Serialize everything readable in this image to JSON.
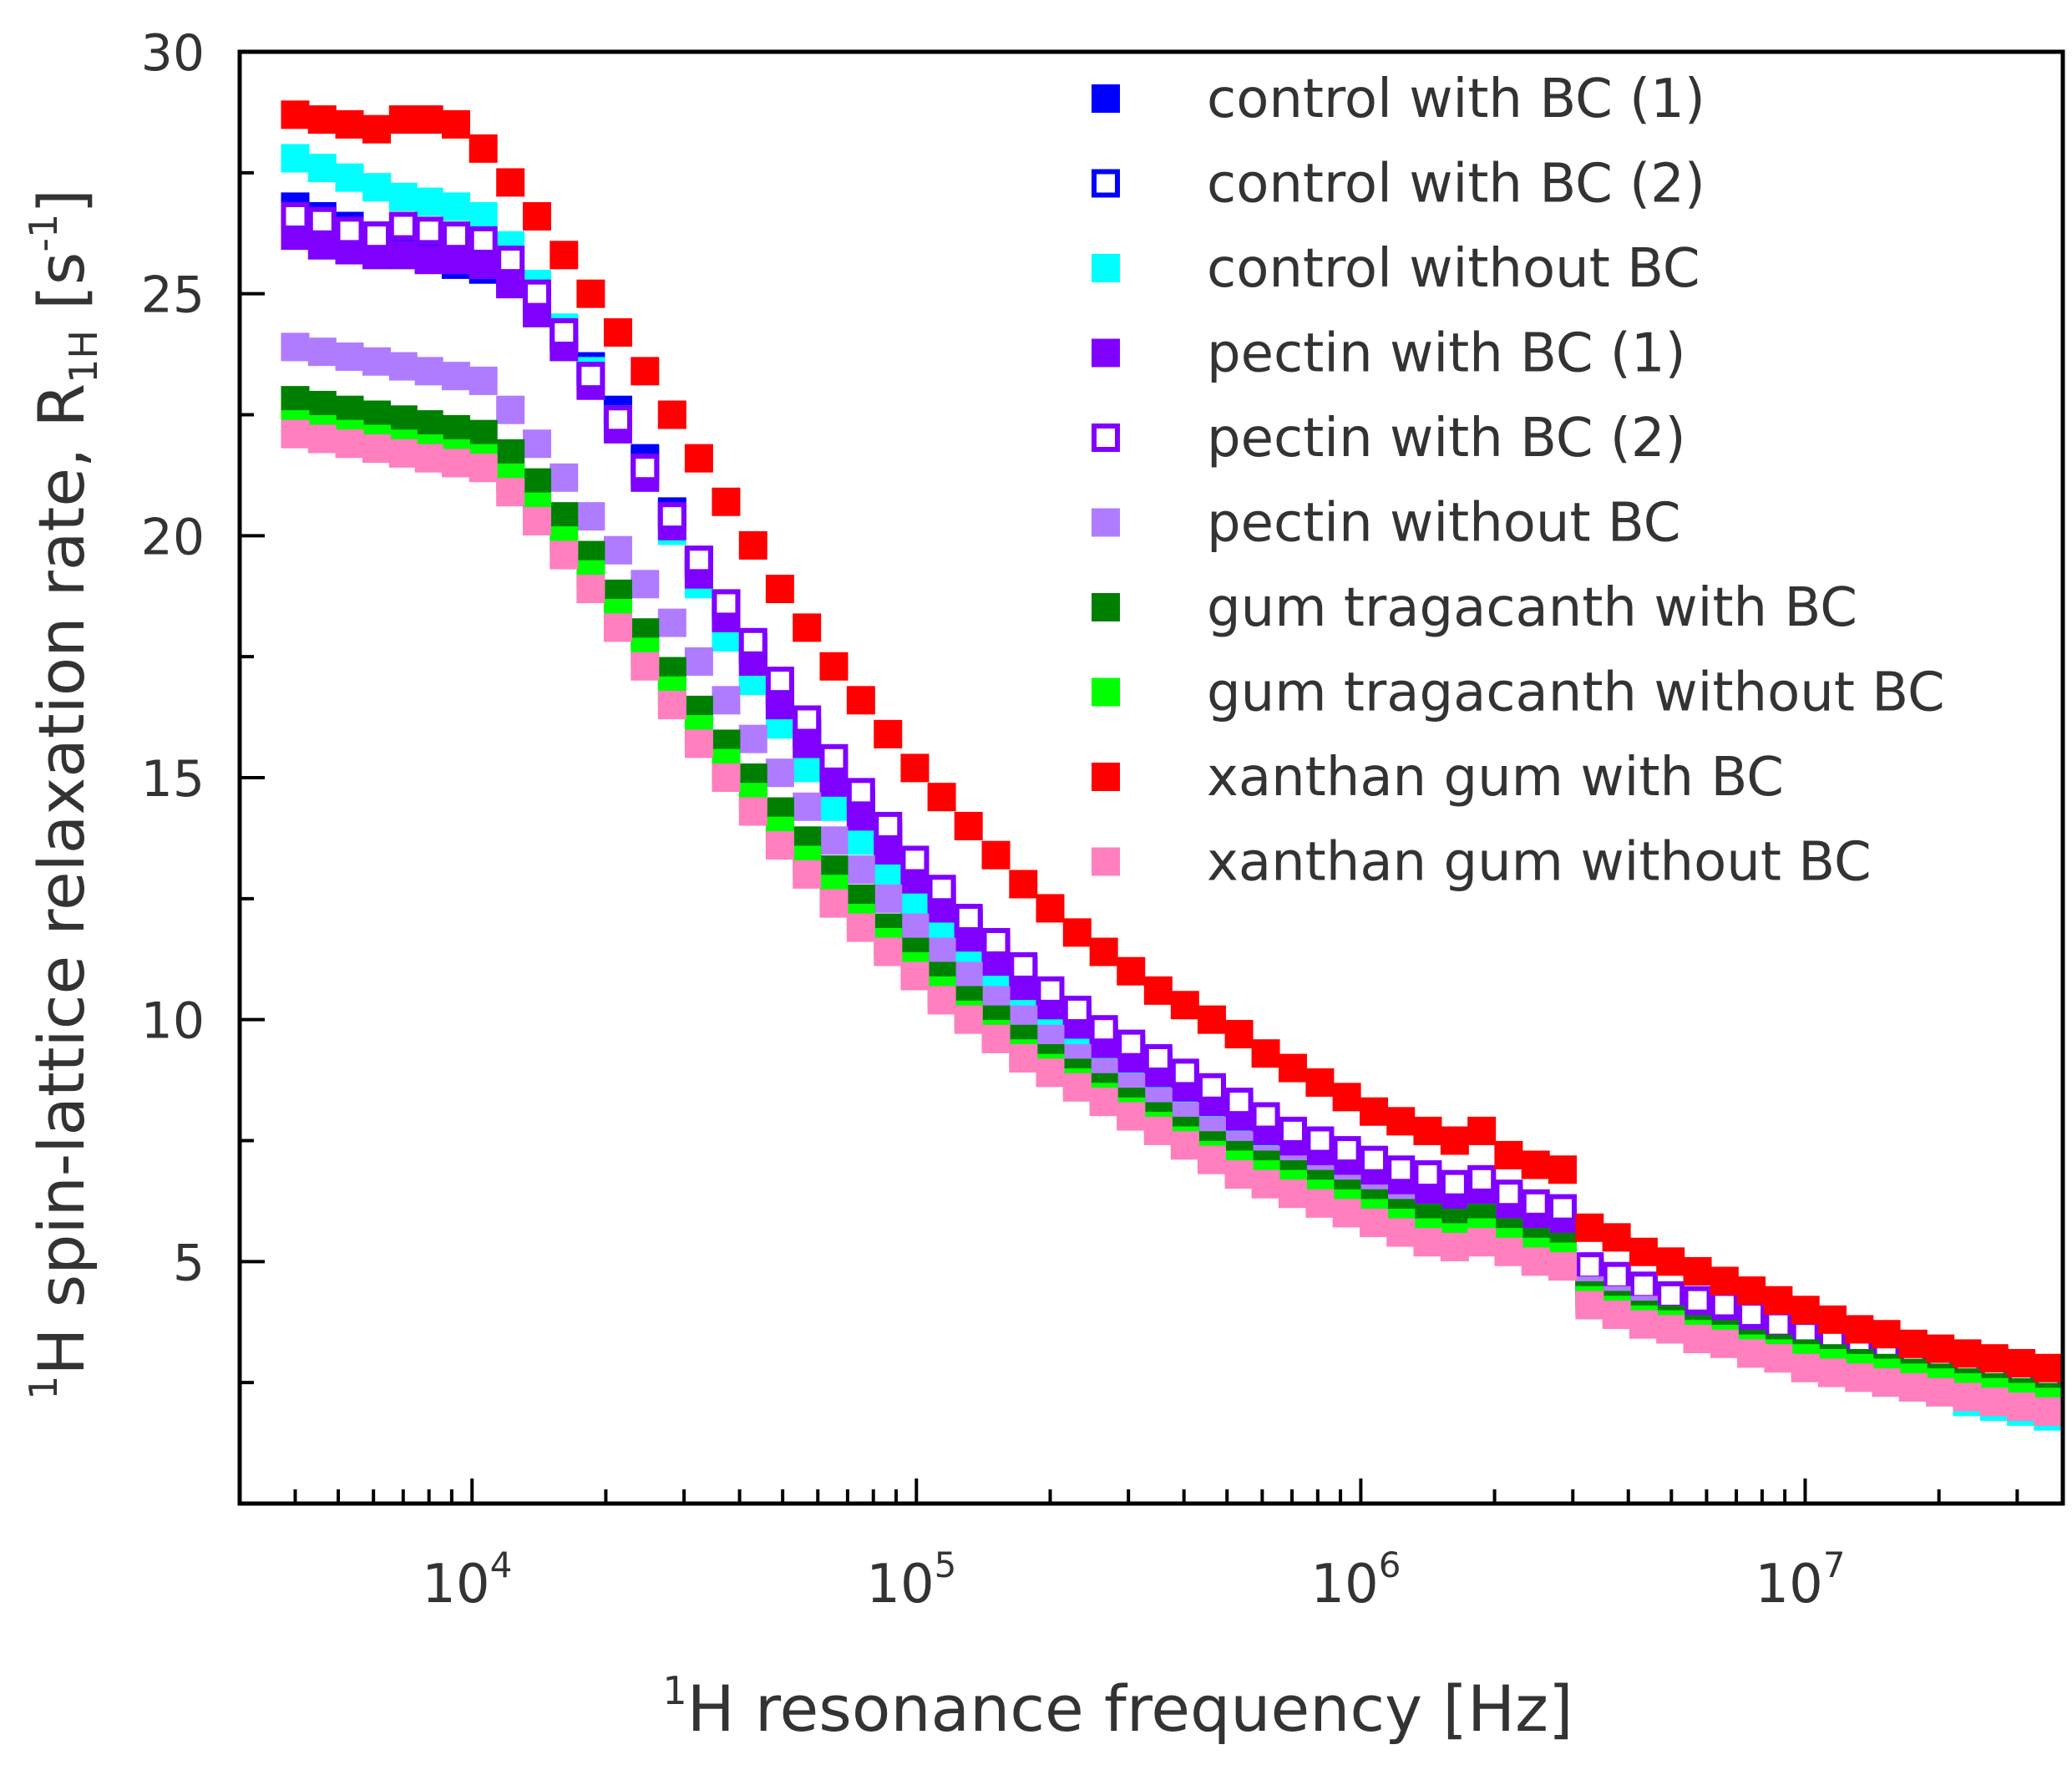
{
  "chart_data": {
    "type": "scatter",
    "title": "",
    "xlabel": {
      "sup": "1",
      "main": "H resonance frequency [Hz]"
    },
    "ylabel": {
      "sup": "1",
      "main": "H spin-lattice relaxation rate,  R",
      "sub": "1H",
      "unit_open": " [s",
      "unit_sup": "-1",
      "unit_close": "]"
    },
    "xscale": "log",
    "xlim": [
      3000,
      38000000
    ],
    "ylim": [
      0,
      30
    ],
    "x_ticks": [
      {
        "value": 10000,
        "base": "10",
        "exp": "4"
      },
      {
        "value": 100000,
        "base": "10",
        "exp": "5"
      },
      {
        "value": 1000000,
        "base": "10",
        "exp": "6"
      },
      {
        "value": 10000000,
        "base": "10",
        "exp": "7"
      }
    ],
    "y_ticks": [
      {
        "value": 5,
        "label": "5"
      },
      {
        "value": 10,
        "label": "10"
      },
      {
        "value": 15,
        "label": "15"
      },
      {
        "value": 20,
        "label": "20"
      },
      {
        "value": 25,
        "label": "25"
      },
      {
        "value": 30,
        "label": "30"
      }
    ],
    "legend_position": "top-right",
    "x": [
      4000,
      4600,
      5300,
      6100,
      7000,
      8000,
      9200,
      10600,
      12200,
      14000,
      16100,
      18500,
      21300,
      24500,
      28200,
      32400,
      37300,
      42900,
      49300,
      56700,
      65200,
      75000,
      86300,
      99200,
      114000,
      131000,
      151000,
      174000,
      200000,
      230000,
      264000,
      304000,
      350000,
      402000,
      462000,
      532000,
      611000,
      703000,
      809000,
      930000,
      1070000,
      1230000,
      1414000,
      1627000,
      1871000,
      2151000,
      2474000,
      2845000,
      3272000,
      3763000,
      4327000,
      4976000,
      5723000,
      6581000,
      7568000,
      8703000,
      10010000,
      11510000,
      13240000,
      15220000,
      17500000,
      20130000,
      23150000,
      26620000,
      30620000,
      35200000
    ],
    "series": [
      {
        "name": "control with BC (1)",
        "color": "#0000ff",
        "filled": true,
        "values": [
          26.8,
          26.6,
          26.4,
          26.2,
          26,
          25.8,
          25.7,
          25.6,
          25.3,
          24.8,
          24.2,
          23.5,
          22.6,
          21.6,
          20.5,
          19.5,
          18.6,
          17.7,
          16.8,
          16,
          15.2,
          14.5,
          13.8,
          13.2,
          12.6,
          12,
          11.5,
          11,
          10.5,
          10.1,
          9.7,
          9.4,
          9.1,
          8.8,
          8.5,
          8.2,
          7.9,
          7.6,
          7.4,
          7.2,
          7,
          6.8,
          6.6,
          6.5,
          6.6,
          6.3,
          6.1,
          6,
          4.8,
          4.6,
          4.4,
          4.2,
          4.1,
          4,
          3.8,
          3.6,
          3.4,
          3.3,
          3.1,
          3,
          2.9,
          2.8,
          2.7,
          2.6,
          2.5,
          2.4
        ]
      },
      {
        "name": "control with BC (2)",
        "color": "#0000ff",
        "filled": false,
        "values": [
          26.7,
          26.5,
          26.3,
          26.1,
          25.9,
          25.7,
          25.6,
          25.5,
          25.2,
          24.7,
          24.1,
          23.4,
          22.5,
          21.5,
          20.4,
          19.4,
          18.5,
          17.6,
          16.7,
          15.9,
          15.1,
          14.4,
          13.7,
          13.1,
          12.5,
          11.9,
          11.4,
          10.9,
          10.4,
          10,
          9.6,
          9.3,
          9,
          8.7,
          8.4,
          8.1,
          7.8,
          7.5,
          7.3,
          7.1,
          6.9,
          6.7,
          6.5,
          6.4,
          6.5,
          6.2,
          6,
          5.9,
          4.7,
          4.5,
          4.3,
          4.1,
          4,
          3.9,
          3.7,
          3.5,
          3.3,
          3.2,
          3,
          2.9,
          2.8,
          2.7,
          2.6,
          2.5,
          2.4,
          2.3
        ]
      },
      {
        "name": "control without BC",
        "color": "#00ffff",
        "filled": true,
        "values": [
          27.8,
          27.6,
          27.4,
          27.2,
          27,
          26.9,
          26.8,
          26.6,
          26,
          25.2,
          24.3,
          23.4,
          22.4,
          21.3,
          20.1,
          19,
          17.9,
          17,
          16.1,
          15.2,
          14.4,
          13.7,
          13,
          12.4,
          11.8,
          11.3,
          10.8,
          10.3,
          9.9,
          9.5,
          9.2,
          8.8,
          8.5,
          8.2,
          7.9,
          7.6,
          7.3,
          7.1,
          6.9,
          6.7,
          6.5,
          6.3,
          6.1,
          6,
          6.1,
          5.8,
          5.6,
          5.5,
          4.5,
          4.3,
          4.1,
          3.9,
          3.7,
          3.5,
          3.3,
          3.1,
          2.9,
          2.8,
          2.6,
          2.5,
          2.4,
          2.3,
          2.1,
          2,
          1.9,
          1.8
        ]
      },
      {
        "name": "pectin with BC (1)",
        "color": "#8000ff",
        "filled": true,
        "values": [
          26.2,
          26,
          25.9,
          25.8,
          25.8,
          25.7,
          25.7,
          25.6,
          25.2,
          24.6,
          23.9,
          23.1,
          22.2,
          21.2,
          20.2,
          19.2,
          18.3,
          17.4,
          16.5,
          15.7,
          14.9,
          14.2,
          13.5,
          12.9,
          12.3,
          11.7,
          11.2,
          10.7,
          10.3,
          9.9,
          9.5,
          9.2,
          8.9,
          8.6,
          8.3,
          8,
          7.7,
          7.4,
          7.2,
          7,
          6.8,
          6.6,
          6.4,
          6.3,
          6.4,
          6.1,
          5.9,
          5.8,
          4.6,
          4.4,
          4.2,
          4.1,
          4,
          3.9,
          3.7,
          3.5,
          3.3,
          3.2,
          3,
          2.9,
          2.8,
          2.7,
          2.6,
          2.5,
          2.4,
          2.3
        ]
      },
      {
        "name": "pectin with BC (2)",
        "color": "#8000ff",
        "filled": false,
        "values": [
          26.6,
          26.5,
          26.3,
          26.2,
          26.4,
          26.3,
          26.2,
          26.1,
          25.7,
          25,
          24.2,
          23.3,
          22.4,
          21.4,
          20.4,
          19.5,
          18.6,
          17.8,
          17,
          16.2,
          15.4,
          14.7,
          14,
          13.3,
          12.7,
          12.1,
          11.6,
          11.1,
          10.6,
          10.2,
          9.8,
          9.5,
          9.2,
          8.9,
          8.6,
          8.3,
          8,
          7.7,
          7.5,
          7.3,
          7.1,
          6.9,
          6.8,
          6.6,
          6.7,
          6.4,
          6.2,
          6.1,
          4.9,
          4.7,
          4.5,
          4.3,
          4.2,
          4.1,
          3.9,
          3.7,
          3.5,
          3.4,
          3.2,
          3.1,
          3,
          2.9,
          2.8,
          2.7,
          2.6,
          2.5
        ]
      },
      {
        "name": "pectin without BC",
        "color": "#b07cff",
        "filled": true,
        "values": [
          23.9,
          23.8,
          23.7,
          23.6,
          23.5,
          23.4,
          23.3,
          23.2,
          22.6,
          21.9,
          21.2,
          20.4,
          19.7,
          19,
          18.2,
          17.4,
          16.6,
          15.8,
          15.1,
          14.4,
          13.7,
          13.1,
          12.5,
          11.9,
          11.4,
          10.9,
          10.4,
          10,
          9.6,
          9.2,
          8.9,
          8.6,
          8.3,
          8,
          7.7,
          7.4,
          7.1,
          6.9,
          6.7,
          6.5,
          6.3,
          6.1,
          5.9,
          5.8,
          5.9,
          5.6,
          5.4,
          5.3,
          4.4,
          4.2,
          4,
          3.8,
          3.6,
          3.4,
          3.2,
          3.1,
          2.9,
          2.8,
          2.7,
          2.6,
          2.5,
          2.4,
          2.3,
          2.2,
          2.1,
          2
        ]
      },
      {
        "name": "gum tragacanth with BC",
        "color": "#008000",
        "filled": true,
        "values": [
          22.8,
          22.7,
          22.6,
          22.5,
          22.4,
          22.3,
          22.2,
          22.1,
          21.7,
          21.1,
          20.4,
          19.6,
          18.8,
          18,
          17.2,
          16.4,
          15.7,
          15,
          14.3,
          13.7,
          13.1,
          12.5,
          11.9,
          11.4,
          10.9,
          10.4,
          10,
          9.6,
          9.2,
          8.9,
          8.6,
          8.3,
          8,
          7.7,
          7.4,
          7.2,
          7,
          6.8,
          6.6,
          6.4,
          6.2,
          6,
          5.9,
          5.8,
          5.9,
          5.6,
          5.4,
          5.3,
          4.3,
          4.1,
          3.9,
          3.8,
          3.6,
          3.5,
          3.3,
          3.2,
          3.1,
          3,
          2.9,
          2.8,
          2.7,
          2.6,
          2.5,
          2.4,
          2.3,
          2.2
        ]
      },
      {
        "name": "gum tragacanth without BC",
        "color": "#00ff00",
        "filled": true,
        "values": [
          22.3,
          22.2,
          22.1,
          22,
          21.9,
          21.8,
          21.7,
          21.6,
          21.2,
          20.6,
          19.9,
          19.2,
          18.4,
          17.6,
          16.8,
          16,
          15.3,
          14.6,
          13.9,
          13.3,
          12.7,
          12.1,
          11.6,
          11.1,
          10.6,
          10.1,
          9.7,
          9.3,
          9,
          8.7,
          8.4,
          8.1,
          7.8,
          7.5,
          7.2,
          7,
          6.8,
          6.6,
          6.4,
          6.2,
          6,
          5.8,
          5.6,
          5.5,
          5.6,
          5.4,
          5.2,
          5.1,
          4.2,
          4,
          3.8,
          3.7,
          3.5,
          3.4,
          3.2,
          3.1,
          3,
          2.9,
          2.8,
          2.7,
          2.6,
          2.5,
          2.4,
          2.3,
          2.2,
          2.1
        ]
      },
      {
        "name": "xanthan gum with BC",
        "color": "#ff0000",
        "filled": true,
        "values": [
          28.7,
          28.6,
          28.5,
          28.4,
          28.6,
          28.6,
          28.5,
          28,
          27.3,
          26.6,
          25.8,
          25,
          24.2,
          23.4,
          22.5,
          21.6,
          20.7,
          19.8,
          18.9,
          18.1,
          17.3,
          16.6,
          15.9,
          15.2,
          14.6,
          14,
          13.4,
          12.8,
          12.3,
          11.8,
          11.4,
          11,
          10.6,
          10.3,
          10,
          9.7,
          9.3,
          9,
          8.7,
          8.4,
          8.1,
          7.9,
          7.7,
          7.5,
          7.7,
          7.2,
          7,
          6.9,
          5.7,
          5.5,
          5.2,
          5,
          4.8,
          4.6,
          4.4,
          4.2,
          4,
          3.8,
          3.6,
          3.5,
          3.3,
          3.2,
          3.1,
          3,
          2.9,
          2.8
        ]
      },
      {
        "name": "xanthan gum without BC",
        "color": "#ff7fbf",
        "filled": true,
        "values": [
          22.1,
          22,
          21.9,
          21.8,
          21.7,
          21.6,
          21.5,
          21.4,
          20.9,
          20.3,
          19.6,
          18.9,
          18.1,
          17.3,
          16.5,
          15.7,
          15,
          14.3,
          13.6,
          13,
          12.4,
          11.9,
          11.4,
          10.9,
          10.4,
          10,
          9.6,
          9.2,
          8.9,
          8.6,
          8.3,
          8,
          7.7,
          7.4,
          7.1,
          6.8,
          6.6,
          6.4,
          6.2,
          6,
          5.8,
          5.6,
          5.4,
          5.3,
          5.4,
          5.2,
          5,
          4.9,
          4.1,
          3.9,
          3.7,
          3.6,
          3.4,
          3.3,
          3.1,
          3,
          2.8,
          2.7,
          2.6,
          2.5,
          2.4,
          2.3,
          2.2,
          2.1,
          2,
          1.9
        ]
      }
    ]
  }
}
